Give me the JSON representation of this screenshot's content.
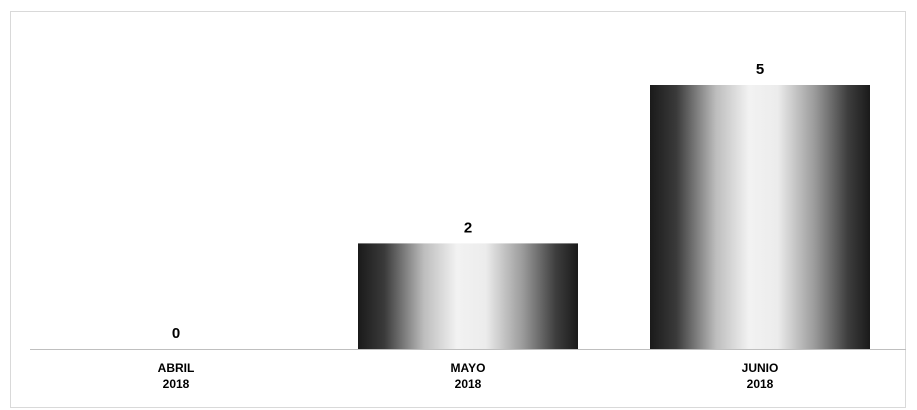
{
  "chart_data": {
    "type": "bar",
    "categories": [
      [
        "ABRIL",
        "2018"
      ],
      [
        "MAYO",
        "2018"
      ],
      [
        "JUNIO",
        "2018"
      ]
    ],
    "values": [
      0,
      2,
      5
    ],
    "ylim": [
      0,
      5
    ],
    "grid": false,
    "legend": "none",
    "data_labels": true,
    "bar_fill": "metallic gradient (black-white-black)",
    "colors": {
      "bar_dark": "#1a1a1a",
      "bar_light": "#f2f2f2",
      "axis": "#bfbfbf",
      "border": "#d9d9d9",
      "text": "#000000"
    }
  }
}
